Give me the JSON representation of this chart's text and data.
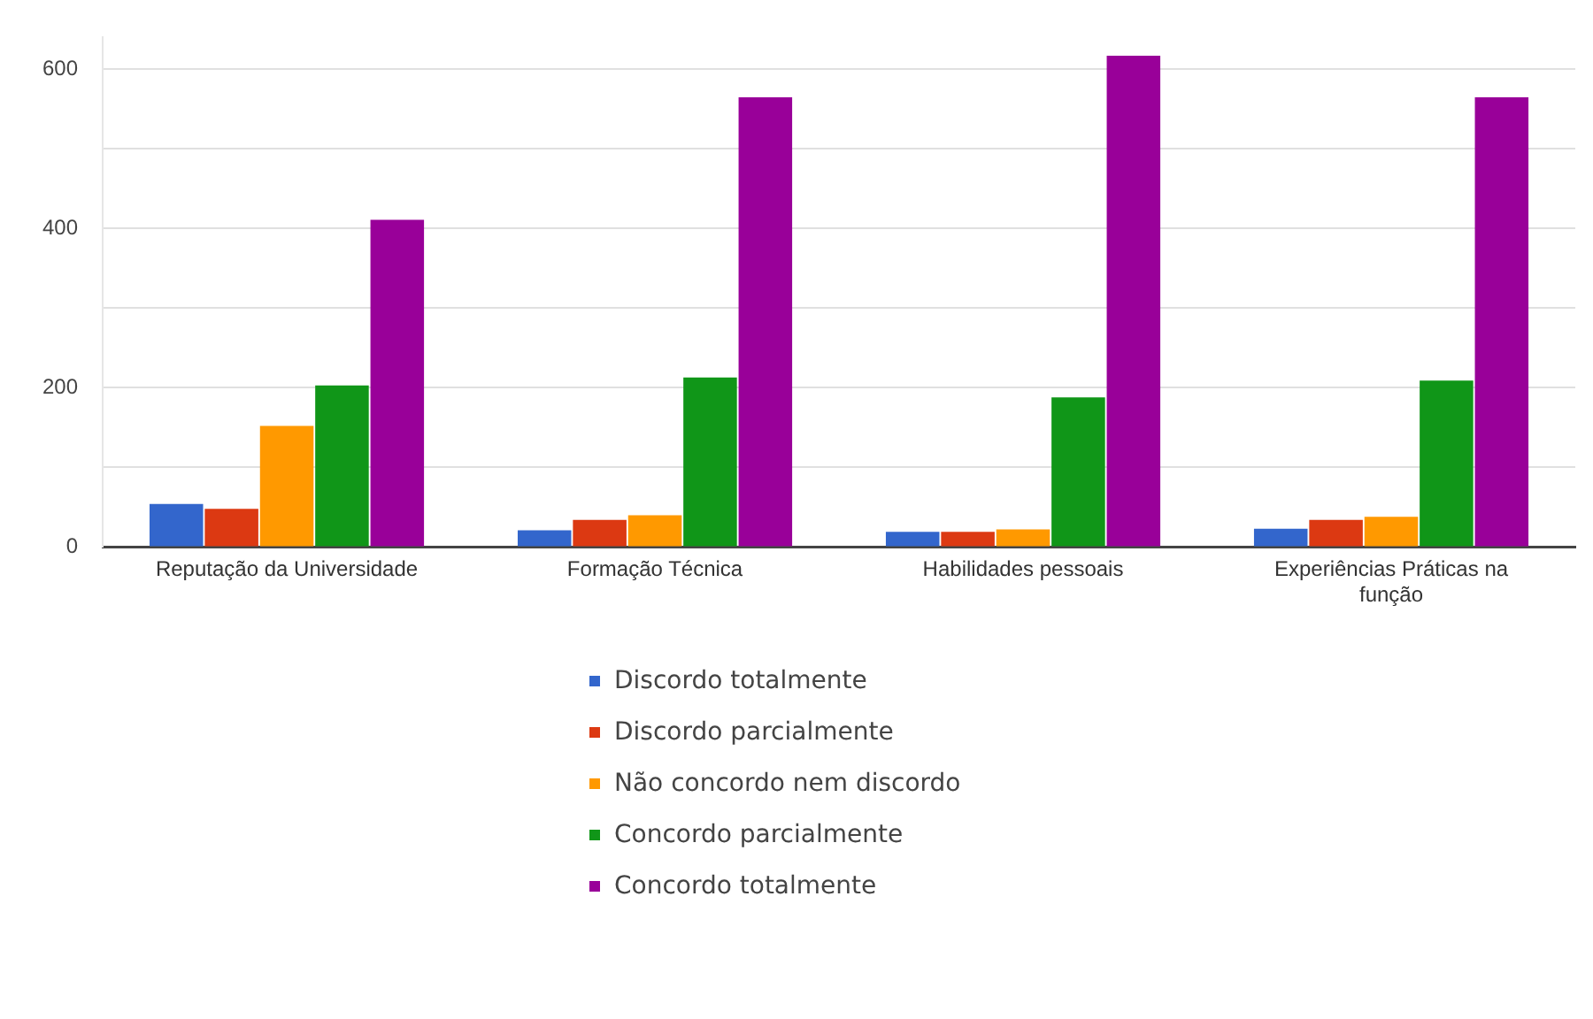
{
  "chart_data": {
    "type": "bar",
    "categories": [
      "Reputação da Universidade",
      "Formação Técnica",
      "Habilidades pessoais",
      "Experiências Práticas na função"
    ],
    "series": [
      {
        "name": "Discordo totalmente",
        "color": "#3366cc",
        "values": [
          54,
          21,
          19,
          23
        ]
      },
      {
        "name": "Discordo parcialmente",
        "color": "#dc3912",
        "values": [
          48,
          34,
          19,
          34
        ]
      },
      {
        "name": "Não concordo nem discordo",
        "color": "#ff9900",
        "values": [
          152,
          40,
          22,
          38
        ]
      },
      {
        "name": "Concordo parcialmente",
        "color": "#109618",
        "values": [
          203,
          213,
          188,
          209
        ]
      },
      {
        "name": "Concordo totalmente",
        "color": "#990099",
        "values": [
          411,
          565,
          617,
          565
        ]
      }
    ],
    "ylim": [
      0,
      640
    ],
    "yticks": [
      0,
      {
        "value": 100,
        "label": null
      },
      200,
      {
        "value": 300,
        "label": null
      },
      400,
      {
        "value": 500,
        "label": null
      },
      600
    ],
    "grid": "y",
    "legend": "bottom"
  }
}
